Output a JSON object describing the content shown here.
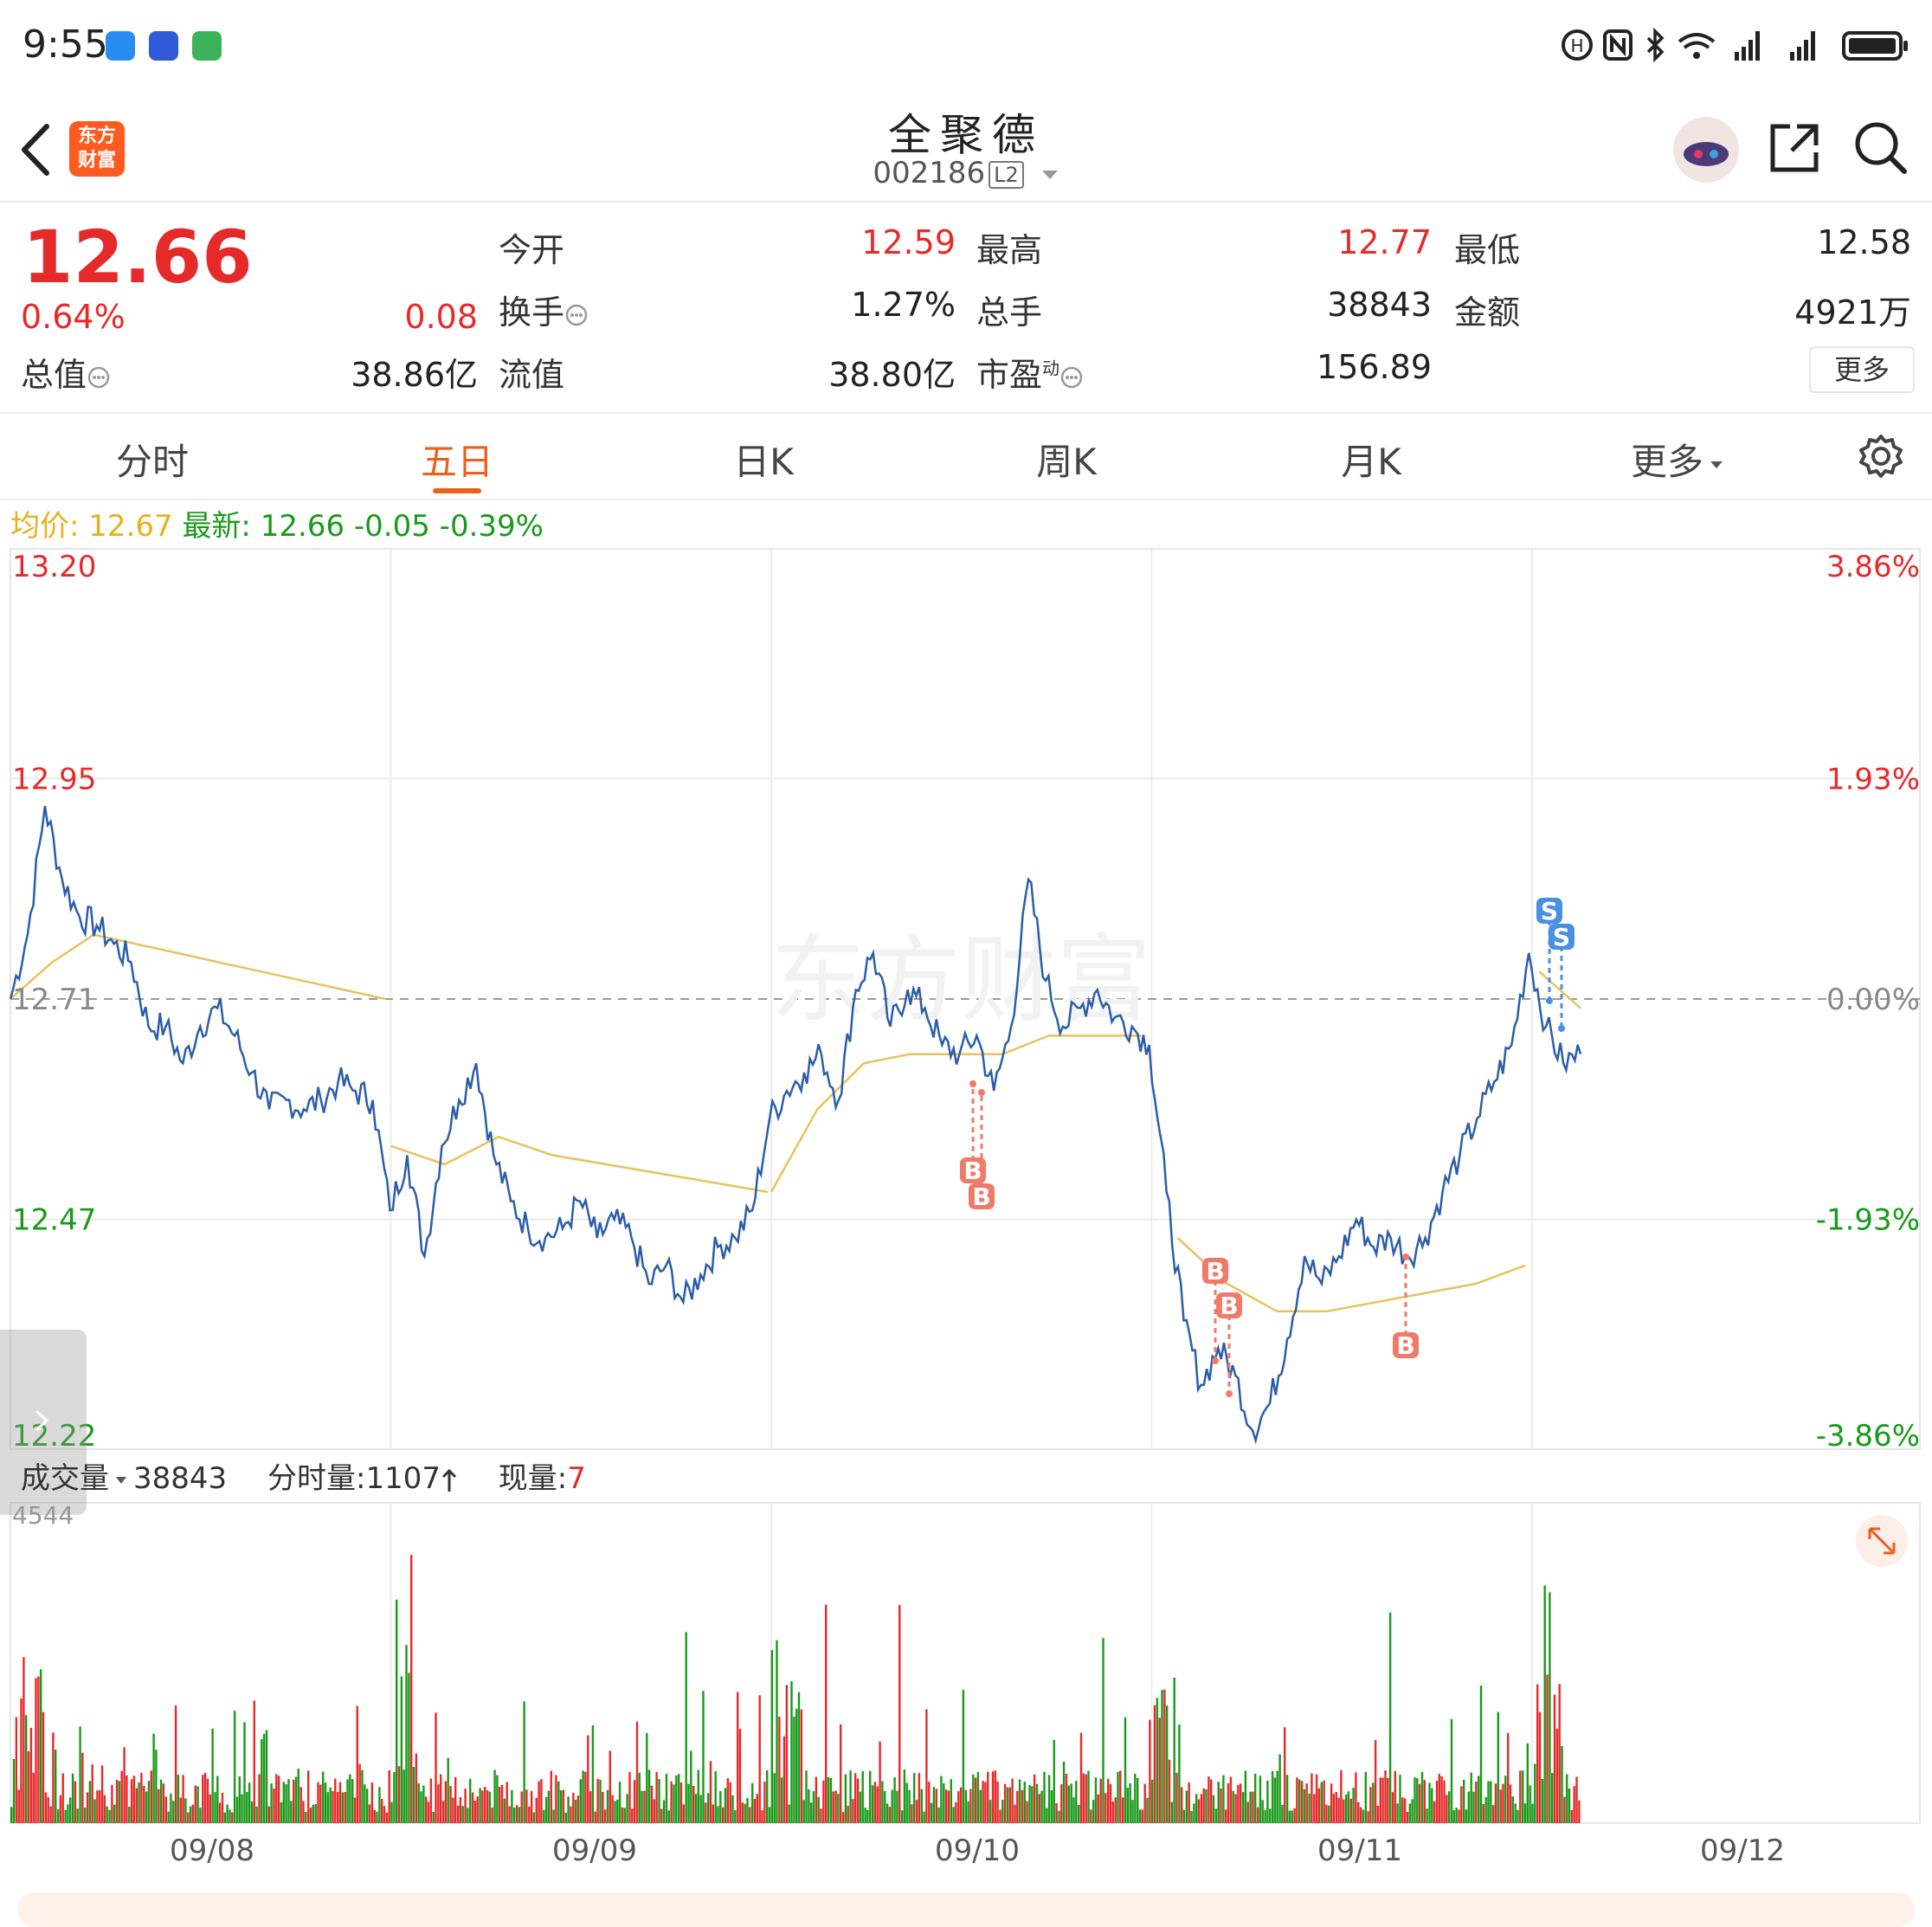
{
  "status_bar": {
    "time": "9:55",
    "app_icons": [
      "chat-app-icon",
      "browser-app-icon",
      "sim-app-icon"
    ],
    "right_icons": [
      "hd-icon",
      "nfc-icon",
      "bluetooth-icon",
      "wifi-icon",
      "signal-icon-1",
      "signal-icon-2",
      "battery-icon"
    ]
  },
  "header": {
    "back_icon": "chevron-left-icon",
    "logo_text_line1": "东方",
    "logo_text_line2": "财富",
    "title": "全聚德",
    "stock_code": "002186",
    "level_badge": "L2",
    "right_icons": [
      "assistant-avatar-icon",
      "share-icon",
      "search-icon"
    ]
  },
  "quote": {
    "price": "12.66",
    "change_pct": "0.64%",
    "change": "0.08",
    "market_cap_label": "总值",
    "market_cap": "38.86亿",
    "open_label": "今开",
    "open": "12.59",
    "high_label": "最高",
    "high": "12.77",
    "low_label": "最低",
    "low": "12.58",
    "turnover_label": "换手",
    "turnover": "1.27%",
    "volume_label": "总手",
    "volume": "38843",
    "amount_label": "金额",
    "amount": "4921万",
    "float_label": "流值",
    "float_value": "38.80亿",
    "pe_label": "市盈",
    "pe_superscript": "动",
    "pe": "156.89",
    "more_label": "更多"
  },
  "tabs": {
    "items": [
      "分时",
      "五日",
      "日K",
      "周K",
      "月K",
      "更多"
    ],
    "active": "五日",
    "settings_icon": "gear-icon"
  },
  "info_line": {
    "avg_label": "均价:",
    "avg_value": "12.67",
    "latest_label": "最新:",
    "latest_value": "12.66",
    "latest_change": "-0.05",
    "latest_change_pct": "-0.39%"
  },
  "chart_data": {
    "type": "line",
    "days": [
      "09/08",
      "09/09",
      "09/10",
      "09/11",
      "09/12"
    ],
    "price_axis_labels": [
      "13.20",
      "12.95",
      "12.71",
      "12.47",
      "12.22"
    ],
    "pct_axis_labels": [
      "3.86%",
      "1.93%",
      "0.00%",
      "-1.93%",
      "-3.86%"
    ],
    "ylim": [
      12.22,
      13.2
    ],
    "baseline": 12.71,
    "series": [
      {
        "price": [
          12.71,
          12.78,
          12.92,
          12.84,
          12.8,
          12.79,
          12.77,
          12.75,
          12.68,
          12.68,
          12.64,
          12.68,
          12.7,
          12.67,
          12.63,
          12.59,
          12.6,
          12.59,
          12.6,
          12.62,
          12.61,
          12.6,
          12.48,
          12.54,
          12.43,
          12.55,
          12.6,
          12.64,
          12.54,
          12.49,
          12.46,
          12.45,
          12.46,
          12.49,
          12.45,
          12.47,
          12.45,
          12.4,
          12.42,
          12.38,
          12.41,
          12.44,
          12.45,
          12.48,
          12.58,
          12.61,
          12.63,
          12.65,
          12.6,
          12.72,
          12.76,
          12.68,
          12.72,
          12.7,
          12.66,
          12.65,
          12.67,
          12.61,
          12.68,
          12.84,
          12.73,
          12.68,
          12.7,
          12.72,
          12.69,
          12.68,
          12.66,
          12.5,
          12.36,
          12.29,
          12.33,
          12.3,
          12.24,
          12.27,
          12.34,
          12.43,
          12.4,
          12.43,
          12.47,
          12.44,
          12.45,
          12.43,
          12.45,
          12.5,
          12.54,
          12.58,
          12.62,
          12.66,
          12.76,
          12.68,
          12.64,
          12.65
        ],
        "avg": [
          12.71,
          12.75,
          12.78,
          12.77,
          12.76,
          12.75,
          12.74,
          12.73,
          12.72,
          12.71,
          12.55,
          12.53,
          12.56,
          12.54,
          12.53,
          12.52,
          12.51,
          12.5,
          12.5,
          12.59,
          12.64,
          12.65,
          12.65,
          12.65,
          12.67,
          12.67,
          12.67,
          12.45,
          12.4,
          12.37,
          12.37,
          12.38,
          12.39,
          12.4,
          12.42,
          12.74,
          12.7
        ]
      }
    ],
    "markers": [
      {
        "label": "B",
        "day": "09/10"
      },
      {
        "label": "B",
        "day": "09/10"
      },
      {
        "label": "B",
        "day": "09/11"
      },
      {
        "label": "B",
        "day": "09/11"
      },
      {
        "label": "B",
        "day": "09/11"
      },
      {
        "label": "S",
        "day": "09/12"
      },
      {
        "label": "S",
        "day": "09/12"
      }
    ],
    "volume_max_label": "4544",
    "colors": {
      "price_line": "#2c5ea8",
      "avg_line": "#e8c25a",
      "up": "#e62a2a",
      "down": "#1a9a1a",
      "buy_marker": "#f07a6a",
      "sell_marker": "#4a90e2"
    }
  },
  "volume_info": {
    "selector_label": "成交量",
    "total": "38843",
    "minute_label": "分时量:",
    "minute_value": "1107",
    "current_label": "现量:",
    "current_value": "7"
  },
  "watermark": "东方财富"
}
